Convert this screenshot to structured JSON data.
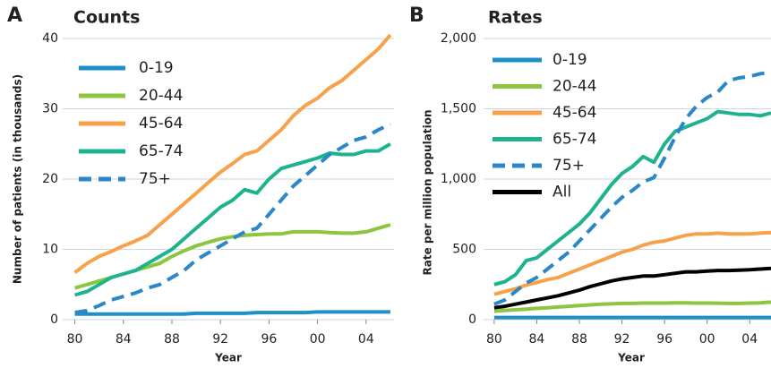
{
  "chart_data": [
    {
      "type": "line",
      "panel_label": "A",
      "title": "Counts",
      "xlabel": "Year",
      "ylabel": "Number of patients (in thousands)",
      "x": [
        1980,
        1981,
        1982,
        1983,
        1984,
        1985,
        1986,
        1987,
        1988,
        1989,
        1990,
        1991,
        1992,
        1993,
        1994,
        1995,
        1996,
        1997,
        1998,
        1999,
        2000,
        2001,
        2002,
        2003,
        2004,
        2005,
        2006
      ],
      "xlim": [
        1979,
        2006.3
      ],
      "xticks": [
        {
          "value": 1980,
          "label": "80"
        },
        {
          "value": 1984,
          "label": "84"
        },
        {
          "value": 1988,
          "label": "88"
        },
        {
          "value": 1992,
          "label": "92"
        },
        {
          "value": 1996,
          "label": "96"
        },
        {
          "value": 2000,
          "label": "00"
        },
        {
          "value": 2004,
          "label": "04"
        }
      ],
      "ylim": [
        0,
        40
      ],
      "yticks": [
        0,
        10,
        20,
        30,
        40
      ],
      "grid": true,
      "series": [
        {
          "name": "0-19",
          "color": "#1f8fc8",
          "dashed": false,
          "values": [
            0.8,
            0.8,
            0.8,
            0.8,
            0.8,
            0.8,
            0.8,
            0.8,
            0.8,
            0.8,
            0.9,
            0.9,
            0.9,
            0.9,
            0.9,
            1.0,
            1.0,
            1.0,
            1.0,
            1.0,
            1.1,
            1.1,
            1.1,
            1.1,
            1.1,
            1.1,
            1.1
          ]
        },
        {
          "name": "20-44",
          "color": "#8cc63f",
          "dashed": false,
          "values": [
            4.5,
            5,
            5.5,
            6,
            6.5,
            7,
            7.5,
            8,
            9,
            9.8,
            10.5,
            11,
            11.5,
            11.8,
            12,
            12.1,
            12.2,
            12.2,
            12.5,
            12.5,
            12.5,
            12.4,
            12.3,
            12.3,
            12.5,
            13,
            13.5
          ]
        },
        {
          "name": "45-64",
          "color": "#f7a24b",
          "dashed": false,
          "values": [
            6.7,
            8,
            9,
            9.7,
            10.5,
            11.2,
            12,
            13.5,
            15,
            16.5,
            18,
            19.5,
            21,
            22.2,
            23.5,
            24,
            25.5,
            27,
            29,
            30.5,
            31.5,
            33,
            34,
            35.5,
            37,
            38.5,
            40.5
          ]
        },
        {
          "name": "65-74",
          "color": "#1db38f",
          "dashed": false,
          "values": [
            3.5,
            4,
            5,
            6,
            6.5,
            7,
            8,
            9,
            10,
            11.5,
            13,
            14.5,
            16,
            17,
            18.5,
            18,
            20,
            21.5,
            22,
            22.5,
            23,
            23.7,
            23.5,
            23.5,
            24,
            24,
            25
          ]
        },
        {
          "name": "75+",
          "color": "#2a87c8",
          "dashed": true,
          "values": [
            1,
            1.3,
            2,
            2.8,
            3.3,
            3.8,
            4.5,
            5,
            6,
            7,
            8.5,
            9.5,
            10.5,
            11.5,
            12.5,
            13,
            15,
            17,
            19,
            20.5,
            22,
            23.5,
            24.5,
            25.5,
            26,
            27,
            27.8
          ]
        }
      ]
    },
    {
      "type": "line",
      "panel_label": "B",
      "title": "Rates",
      "xlabel": "Year",
      "ylabel": "Rate per million population",
      "x": [
        1980,
        1981,
        1982,
        1983,
        1984,
        1985,
        1986,
        1987,
        1988,
        1989,
        1990,
        1991,
        1992,
        1993,
        1994,
        1995,
        1996,
        1997,
        1998,
        1999,
        2000,
        2001,
        2002,
        2003,
        2004,
        2005,
        2006
      ],
      "xlim": [
        1979,
        2006
      ],
      "xticks": [
        {
          "value": 1980,
          "label": "80"
        },
        {
          "value": 1984,
          "label": "84"
        },
        {
          "value": 1988,
          "label": "88"
        },
        {
          "value": 1992,
          "label": "92"
        },
        {
          "value": 1996,
          "label": "96"
        },
        {
          "value": 2000,
          "label": "00"
        },
        {
          "value": 2004,
          "label": "04"
        }
      ],
      "ylim": [
        0,
        2000
      ],
      "yticks": [
        0,
        500,
        {
          "value": 1000,
          "label": "1,000"
        },
        {
          "value": 1500,
          "label": "1,500"
        },
        {
          "value": 2000,
          "label": "2,000"
        }
      ],
      "grid": true,
      "series": [
        {
          "name": "0-19",
          "color": "#1f8fc8",
          "dashed": false,
          "values": [
            15,
            15,
            15,
            15,
            15,
            15,
            15,
            15,
            15,
            15,
            15,
            15,
            15,
            15,
            15,
            15,
            15,
            15,
            15,
            15,
            15,
            15,
            15,
            15,
            15,
            15,
            15
          ]
        },
        {
          "name": "20-44",
          "color": "#8cc63f",
          "dashed": false,
          "values": [
            60,
            65,
            70,
            75,
            80,
            85,
            90,
            95,
            100,
            105,
            110,
            112,
            115,
            115,
            118,
            118,
            118,
            120,
            120,
            118,
            118,
            117,
            115,
            115,
            118,
            120,
            125
          ]
        },
        {
          "name": "45-64",
          "color": "#f7a24b",
          "dashed": false,
          "values": [
            180,
            200,
            220,
            245,
            265,
            285,
            300,
            330,
            360,
            390,
            420,
            450,
            480,
            500,
            530,
            550,
            560,
            580,
            600,
            610,
            610,
            615,
            610,
            610,
            610,
            615,
            620
          ]
        },
        {
          "name": "65-74",
          "color": "#1db38f",
          "dashed": false,
          "values": [
            250,
            270,
            320,
            420,
            440,
            500,
            560,
            620,
            680,
            760,
            860,
            960,
            1040,
            1090,
            1160,
            1120,
            1250,
            1340,
            1370,
            1400,
            1430,
            1480,
            1470,
            1460,
            1460,
            1450,
            1470
          ]
        },
        {
          "name": "75+",
          "color": "#2a87c8",
          "dashed": true,
          "values": [
            110,
            140,
            200,
            260,
            300,
            360,
            420,
            480,
            560,
            640,
            720,
            800,
            870,
            920,
            980,
            1010,
            1150,
            1300,
            1430,
            1520,
            1580,
            1620,
            1700,
            1720,
            1730,
            1750,
            1760
          ]
        },
        {
          "name": "All",
          "color": "#000000",
          "dashed": false,
          "values": [
            85,
            95,
            110,
            125,
            140,
            155,
            170,
            190,
            210,
            235,
            255,
            275,
            290,
            300,
            310,
            310,
            320,
            330,
            340,
            340,
            345,
            350,
            350,
            352,
            355,
            360,
            365
          ]
        }
      ]
    }
  ]
}
